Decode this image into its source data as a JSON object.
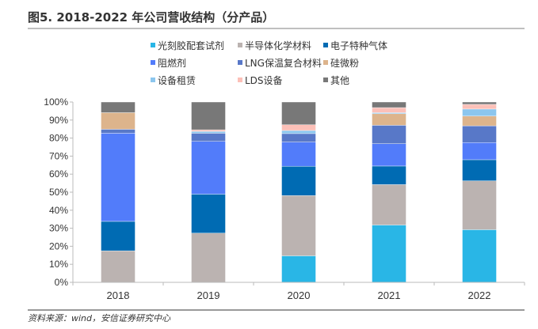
{
  "chart_data": {
    "type": "bar",
    "stacked": true,
    "title": "图5. 2018-2022 年公司营收结构（分产品）",
    "source": "资料来源：wind，安信证券研究中心",
    "categories": [
      "2018",
      "2019",
      "2020",
      "2021",
      "2022"
    ],
    "ylim": [
      0,
      100
    ],
    "yticks": [
      "0%",
      "10%",
      "20%",
      "30%",
      "40%",
      "50%",
      "60%",
      "70%",
      "80%",
      "90%",
      "100%"
    ],
    "legend_position": "top",
    "series": [
      {
        "name": "光刻胶配套试剂",
        "color": "#29b6e6",
        "values": [
          0,
          0,
          14.7,
          31.8,
          29.2
        ]
      },
      {
        "name": "半导体化学材料",
        "color": "#bbb3b1",
        "values": [
          17.5,
          27.3,
          33.4,
          22.4,
          27.1
        ]
      },
      {
        "name": "电子特种气体",
        "color": "#006bb3",
        "values": [
          16.3,
          21.6,
          16.3,
          10.3,
          11.7
        ]
      },
      {
        "name": "阻燃剂",
        "color": "#527cfa",
        "values": [
          48.9,
          29.3,
          13.4,
          12.4,
          9.5
        ]
      },
      {
        "name": "LNG保温复合材料",
        "color": "#5878c8",
        "values": [
          2.2,
          4.5,
          4.7,
          10.2,
          9.3
        ]
      },
      {
        "name": "硅微粉",
        "color": "#ddb48c",
        "values": [
          9.2,
          0,
          0,
          6.4,
          5.4
        ]
      },
      {
        "name": "设备租赁",
        "color": "#8cc6ee",
        "values": [
          0,
          1.0,
          1.7,
          0.6,
          3.9
        ]
      },
      {
        "name": "LDS设备",
        "color": "#fcc0b8",
        "values": [
          0,
          0.9,
          3.2,
          2.8,
          2.6
        ]
      },
      {
        "name": "其他",
        "color": "#787878",
        "values": [
          5.9,
          15.4,
          12.6,
          3.1,
          1.3
        ]
      }
    ]
  }
}
